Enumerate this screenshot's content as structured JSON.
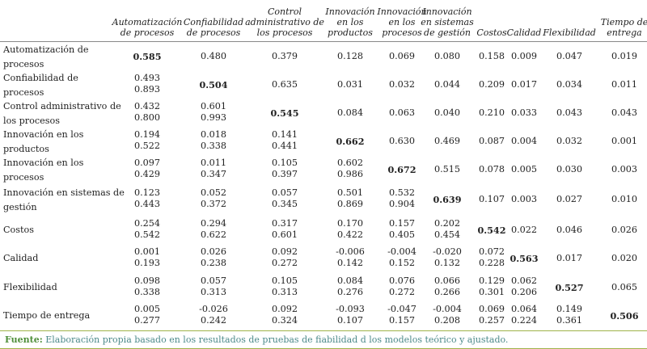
{
  "headers": [
    "Automatización\nde procesos",
    "Confiabilidad\nde procesos",
    "Control\nadministrativo de\nlos procesos",
    "Innovación\nen los\nproductos",
    "Innovación\nen los\nprocesos",
    "Innovación\nen sistemas\nde gestión",
    "Costos",
    "Calidad",
    "Flexibilidad",
    "Tiempo de\nentrega"
  ],
  "rows": [
    {
      "label": "Automatización de\nprocesos",
      "top": [
        "0.585",
        "0.480",
        "0.379",
        "0.128",
        "0.069",
        "0.080",
        "0.158",
        "0.009",
        "0.047",
        "0.019"
      ],
      "bottom": [
        "",
        "",
        "",
        "",
        "",
        "",
        "",
        "",
        "",
        ""
      ],
      "bold": 0
    },
    {
      "label": "Confiabilidad de\nprocesos",
      "top": [
        "0.493",
        "0.504",
        "0.635",
        "0.031",
        "0.032",
        "0.044",
        "0.209",
        "0.017",
        "0.034",
        "0.011"
      ],
      "bottom": [
        "0.893",
        "",
        "",
        "",
        "",
        "",
        "",
        "",
        "",
        ""
      ],
      "bold": 1
    },
    {
      "label": "Control administrativo de\nlos procesos",
      "top": [
        "0.432",
        "0.601",
        "0.545",
        "0.084",
        "0.063",
        "0.040",
        "0.210",
        "0.033",
        "0.043",
        "0.043"
      ],
      "bottom": [
        "0.800",
        "0.993",
        "",
        "",
        "",
        "",
        "",
        "",
        "",
        ""
      ],
      "bold": 2
    },
    {
      "label": "Innovación en los\nproductos",
      "top": [
        "0.194",
        "0.018",
        "0.141",
        "0.662",
        "0.630",
        "0.469",
        "0.087",
        "0.004",
        "0.032",
        "0.001"
      ],
      "bottom": [
        "0.522",
        "0.338",
        "0.441",
        "",
        "",
        "",
        "",
        "",
        "",
        ""
      ],
      "bold": 3
    },
    {
      "label": "Innovación en los\nprocesos",
      "top": [
        "0.097",
        "0.011",
        "0.105",
        "0.602",
        "0.672",
        "0.515",
        "0.078",
        "0.005",
        "0.030",
        "0.003"
      ],
      "bottom": [
        "0.429",
        "0.347",
        "0.397",
        "0.986",
        "",
        "",
        "",
        "",
        "",
        ""
      ],
      "bold": 4
    },
    {
      "label": "Innovación en sistemas de\ngestión",
      "top": [
        "0.123",
        "0.052",
        "0.057",
        "0.501",
        "0.532",
        "0.639",
        "0.107",
        "0.003",
        "0.027",
        "0.010"
      ],
      "bottom": [
        "0.443",
        "0.372",
        "0.345",
        "0.869",
        "0.904",
        "",
        "",
        "",
        "",
        ""
      ],
      "bold": 5
    },
    {
      "label": "Costos",
      "top": [
        "0.254",
        "0.294",
        "0.317",
        "0.170",
        "0.157",
        "0.202",
        "0.542",
        "0.022",
        "0.046",
        "0.026"
      ],
      "bottom": [
        "0.542",
        "0.622",
        "0.601",
        "0.422",
        "0.405",
        "0.454",
        "",
        "",
        "",
        ""
      ],
      "bold": 6
    },
    {
      "label": "Calidad",
      "top": [
        "0.001",
        "0.026",
        "0.092",
        "-0.006",
        "-0.004",
        "-0.020",
        "0.072",
        "0.563",
        "0.017",
        "0.020"
      ],
      "bottom": [
        "0.193",
        "0.238",
        "0.272",
        "0.142",
        "0.152",
        "0.132",
        "0.228",
        "",
        "",
        ""
      ],
      "bold": 7
    },
    {
      "label": "Flexibilidad",
      "top": [
        "0.098",
        "0.057",
        "0.105",
        "0.084",
        "0.076",
        "0.066",
        "0.129",
        "0.062",
        "0.527",
        "0.065"
      ],
      "bottom": [
        "0.338",
        "0.313",
        "0.313",
        "0.276",
        "0.272",
        "0.266",
        "0.301",
        "0.206",
        "",
        ""
      ],
      "bold": 8
    },
    {
      "label": "Tiempo de entrega",
      "top": [
        "0.005",
        "-0.026",
        "0.092",
        "-0.093",
        "-0.047",
        "-0.004",
        "0.069",
        "0.064",
        "0.149",
        "0.506"
      ],
      "bottom": [
        "0.277",
        "0.242",
        "0.324",
        "0.107",
        "0.157",
        "0.208",
        "0.257",
        "0.224",
        "0.361",
        ""
      ],
      "bold": 9
    }
  ],
  "footer": {
    "label": "Fuente:",
    "text": " Elaboración propia basado en los resultados de pruebas de fiabilidad d los modelos teórico y ajustado."
  }
}
